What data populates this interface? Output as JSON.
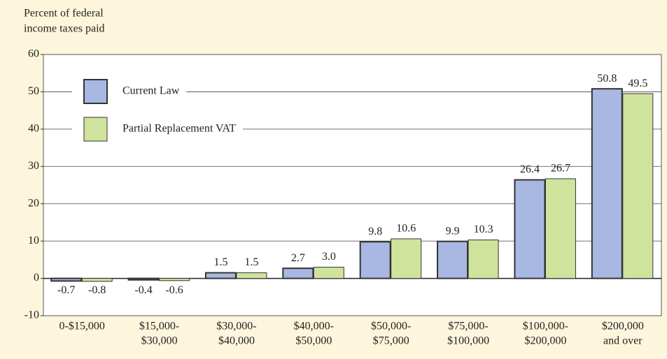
{
  "chart_data": {
    "type": "bar",
    "y_label": [
      "Percent of federal",
      "income taxes paid"
    ],
    "categories": [
      [
        "0-$15,000"
      ],
      [
        "$15,000-",
        "$30,000"
      ],
      [
        "$30,000-",
        "$40,000"
      ],
      [
        "$40,000-",
        "$50,000"
      ],
      [
        "$50,000-",
        "$75,000"
      ],
      [
        "$75,000-",
        "$100,000"
      ],
      [
        "$100,000-",
        "$200,000"
      ],
      [
        "$200,000",
        "and over"
      ]
    ],
    "series": [
      {
        "name": "Current Law",
        "color": "#a9b8e2",
        "values": [
          -0.7,
          -0.4,
          1.5,
          2.7,
          9.8,
          9.9,
          26.4,
          50.8
        ],
        "value_labels": [
          "-0.7",
          "-0.4",
          "1.5",
          "2.7",
          "9.8",
          "9.9",
          "26.4",
          "50.8"
        ]
      },
      {
        "name": "Partial Replacement VAT",
        "color": "#cfe39c",
        "values": [
          -0.8,
          -0.6,
          1.5,
          3.0,
          10.6,
          10.3,
          26.7,
          49.5
        ],
        "value_labels": [
          "-0.8",
          "-0.6",
          "1.5",
          "3.0",
          "10.6",
          "10.3",
          "26.7",
          "49.5"
        ]
      }
    ],
    "ylim": [
      -10,
      60
    ],
    "yticks": [
      -10,
      0,
      10,
      20,
      30,
      40,
      50,
      60
    ],
    "grid": true,
    "legend": "upper left"
  }
}
